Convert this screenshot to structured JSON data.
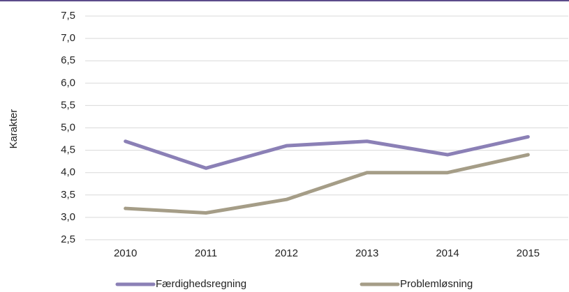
{
  "chart_data": {
    "type": "line",
    "y_label": "Karakter",
    "categories": [
      "2010",
      "2011",
      "2012",
      "2013",
      "2014",
      "2015"
    ],
    "series": [
      {
        "name": "Færdighedsregning",
        "color": "#8b80b6",
        "values": [
          4.7,
          4.1,
          4.6,
          4.7,
          4.4,
          4.8
        ]
      },
      {
        "name": "Problemløsning",
        "color": "#a59d87",
        "values": [
          3.2,
          3.1,
          3.4,
          4.0,
          4.0,
          4.4
        ]
      }
    ],
    "ylim": [
      2.5,
      7.5
    ],
    "yticks": [
      {
        "value": 2.5,
        "label": "2,5"
      },
      {
        "value": 3,
        "label": "3,0"
      },
      {
        "value": 3.5,
        "label": "3,5"
      },
      {
        "value": 4,
        "label": "4,0"
      },
      {
        "value": 4.5,
        "label": "4,5"
      },
      {
        "value": 5,
        "label": "5,0"
      },
      {
        "value": 5.5,
        "label": "5,5"
      },
      {
        "value": 6,
        "label": "6,0"
      },
      {
        "value": 6.5,
        "label": "6,5"
      },
      {
        "value": 7,
        "label": "7,0"
      },
      {
        "value": 7.5,
        "label": "7,5"
      }
    ],
    "grid": true,
    "legend": "bottom"
  }
}
